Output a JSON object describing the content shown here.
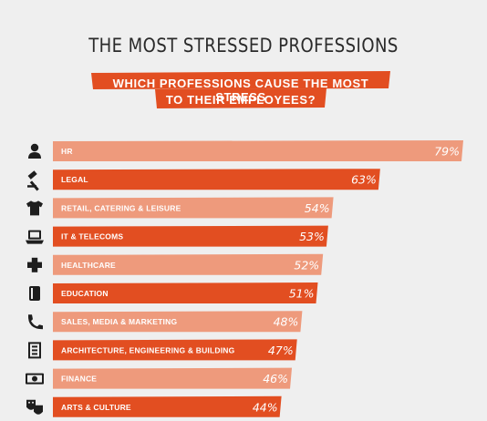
{
  "title": "THE MOST STRESSED PROFESSIONS",
  "subtitle_line1": "WHICH PROFESSIONS CAUSE THE MOST STRESS",
  "subtitle_line2": "TO THEIR EMPLOYEES?",
  "colors": {
    "bar_light": "#ee9a7c",
    "bar_dark": "#e24e21",
    "banner": "#e24e21",
    "icon": "#1e1e1e",
    "background": "#efefef"
  },
  "chart_data": {
    "type": "bar",
    "orientation": "horizontal",
    "categories": [
      "HR",
      "LEGAL",
      "RETAIL, CATERING & LEISURE",
      "IT & TELECOMS",
      "HEALTHCARE",
      "EDUCATION",
      "SALES, MEDIA & MARKETING",
      "ARCHITECTURE, ENGINEERING & BUILDING",
      "FINANCE",
      "ARTS & CULTURE"
    ],
    "values": [
      79,
      63,
      54,
      53,
      52,
      51,
      48,
      47,
      46,
      44
    ],
    "value_labels": [
      "79%",
      "63%",
      "54%",
      "53%",
      "52%",
      "51%",
      "48%",
      "47%",
      "46%",
      "44%"
    ],
    "icons": [
      "person-icon",
      "gavel-icon",
      "tshirt-icon",
      "laptop-icon",
      "medical-cross-icon",
      "book-icon",
      "phone-icon",
      "building-icon",
      "banknote-icon",
      "theatre-masks-icon"
    ],
    "bar_colors": [
      "light",
      "dark",
      "light",
      "dark",
      "light",
      "dark",
      "light",
      "dark",
      "light",
      "dark"
    ],
    "xlim": [
      0,
      79
    ],
    "grid": false,
    "legend": "none"
  }
}
